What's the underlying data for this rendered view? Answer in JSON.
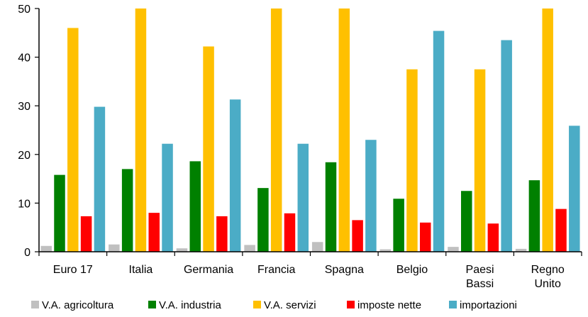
{
  "chart_data": {
    "type": "bar",
    "title": "",
    "xlabel": "",
    "ylabel": "",
    "ylim": [
      0,
      50
    ],
    "yticks": [
      0,
      10,
      20,
      30,
      40,
      50
    ],
    "grid": false,
    "legend_position": "bottom",
    "categories": [
      [
        "Euro 17"
      ],
      [
        "Italia"
      ],
      [
        "Germania"
      ],
      [
        "Francia"
      ],
      [
        "Spagna"
      ],
      [
        "Belgio"
      ],
      [
        "Paesi",
        "Bassi"
      ],
      [
        "Regno",
        "Unito"
      ]
    ],
    "series": [
      {
        "name": "V.A. agricoltura",
        "color": "#c0c0c0",
        "values": [
          1.2,
          1.5,
          0.7,
          1.4,
          2.0,
          0.5,
          1.0,
          0.6
        ]
      },
      {
        "name": "V.A. industria",
        "color": "#008000",
        "values": [
          15.8,
          17.0,
          18.6,
          13.1,
          18.4,
          10.9,
          12.5,
          14.7
        ]
      },
      {
        "name": "V.A. servizi",
        "color": "#ffc000",
        "values": [
          46.0,
          50,
          42.2,
          50,
          50,
          37.5,
          37.5,
          50
        ]
      },
      {
        "name": "imposte nette",
        "color": "#ff0000",
        "values": [
          7.3,
          8.0,
          7.3,
          7.9,
          6.5,
          6.0,
          5.8,
          8.8
        ]
      },
      {
        "name": "importazioni",
        "color": "#4bacc6",
        "values": [
          29.8,
          22.2,
          31.3,
          22.2,
          23.0,
          45.4,
          43.5,
          25.9
        ]
      }
    ]
  }
}
